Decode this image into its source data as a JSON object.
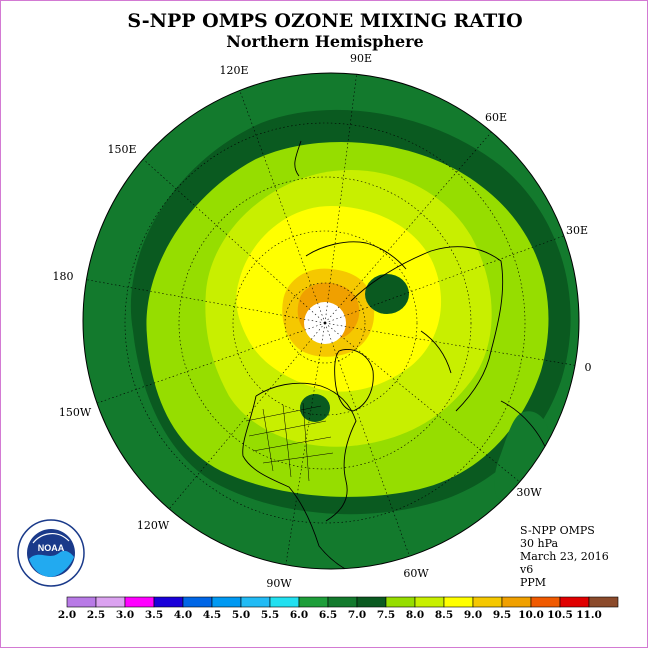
{
  "title": "S-NPP OMPS OZONE MIXING RATIO",
  "subtitle": "Northern Hemisphere",
  "longitude_labels": [
    "90E",
    "60E",
    "30E",
    "0",
    "30W",
    "60W",
    "90W",
    "120W",
    "150W",
    "180",
    "150E",
    "120E"
  ],
  "info": {
    "instrument": "S-NPP OMPS",
    "level": "30 hPa",
    "date": "March 23, 2016",
    "version": "v6",
    "units": "PPM"
  },
  "colorbar": {
    "ticks": [
      "2.0",
      "2.5",
      "3.0",
      "3.5",
      "4.0",
      "4.5",
      "5.0",
      "5.5",
      "6.0",
      "6.5",
      "7.0",
      "7.5",
      "8.0",
      "8.5",
      "9.0",
      "9.5",
      "10.0",
      "10.5",
      "11.0"
    ],
    "colors": [
      "#b87ae6",
      "#dba2f0",
      "#ff00ff",
      "#1a00d9",
      "#0066e6",
      "#0099f2",
      "#22bbf5",
      "#22e0f0",
      "#1e9e3a",
      "#137a2d",
      "#0a5a20",
      "#96dd00",
      "#c8ef00",
      "#ffff00",
      "#f5c800",
      "#f0a000",
      "#f05a00",
      "#e00000",
      "#8b4a2b"
    ]
  },
  "logo": {
    "text": "NOAA",
    "ring_text": "NATIONAL OCEANIC AND ATMOSPHERIC ADMINISTRATION · U.S. DEPARTMENT OF COMMERCE"
  }
}
